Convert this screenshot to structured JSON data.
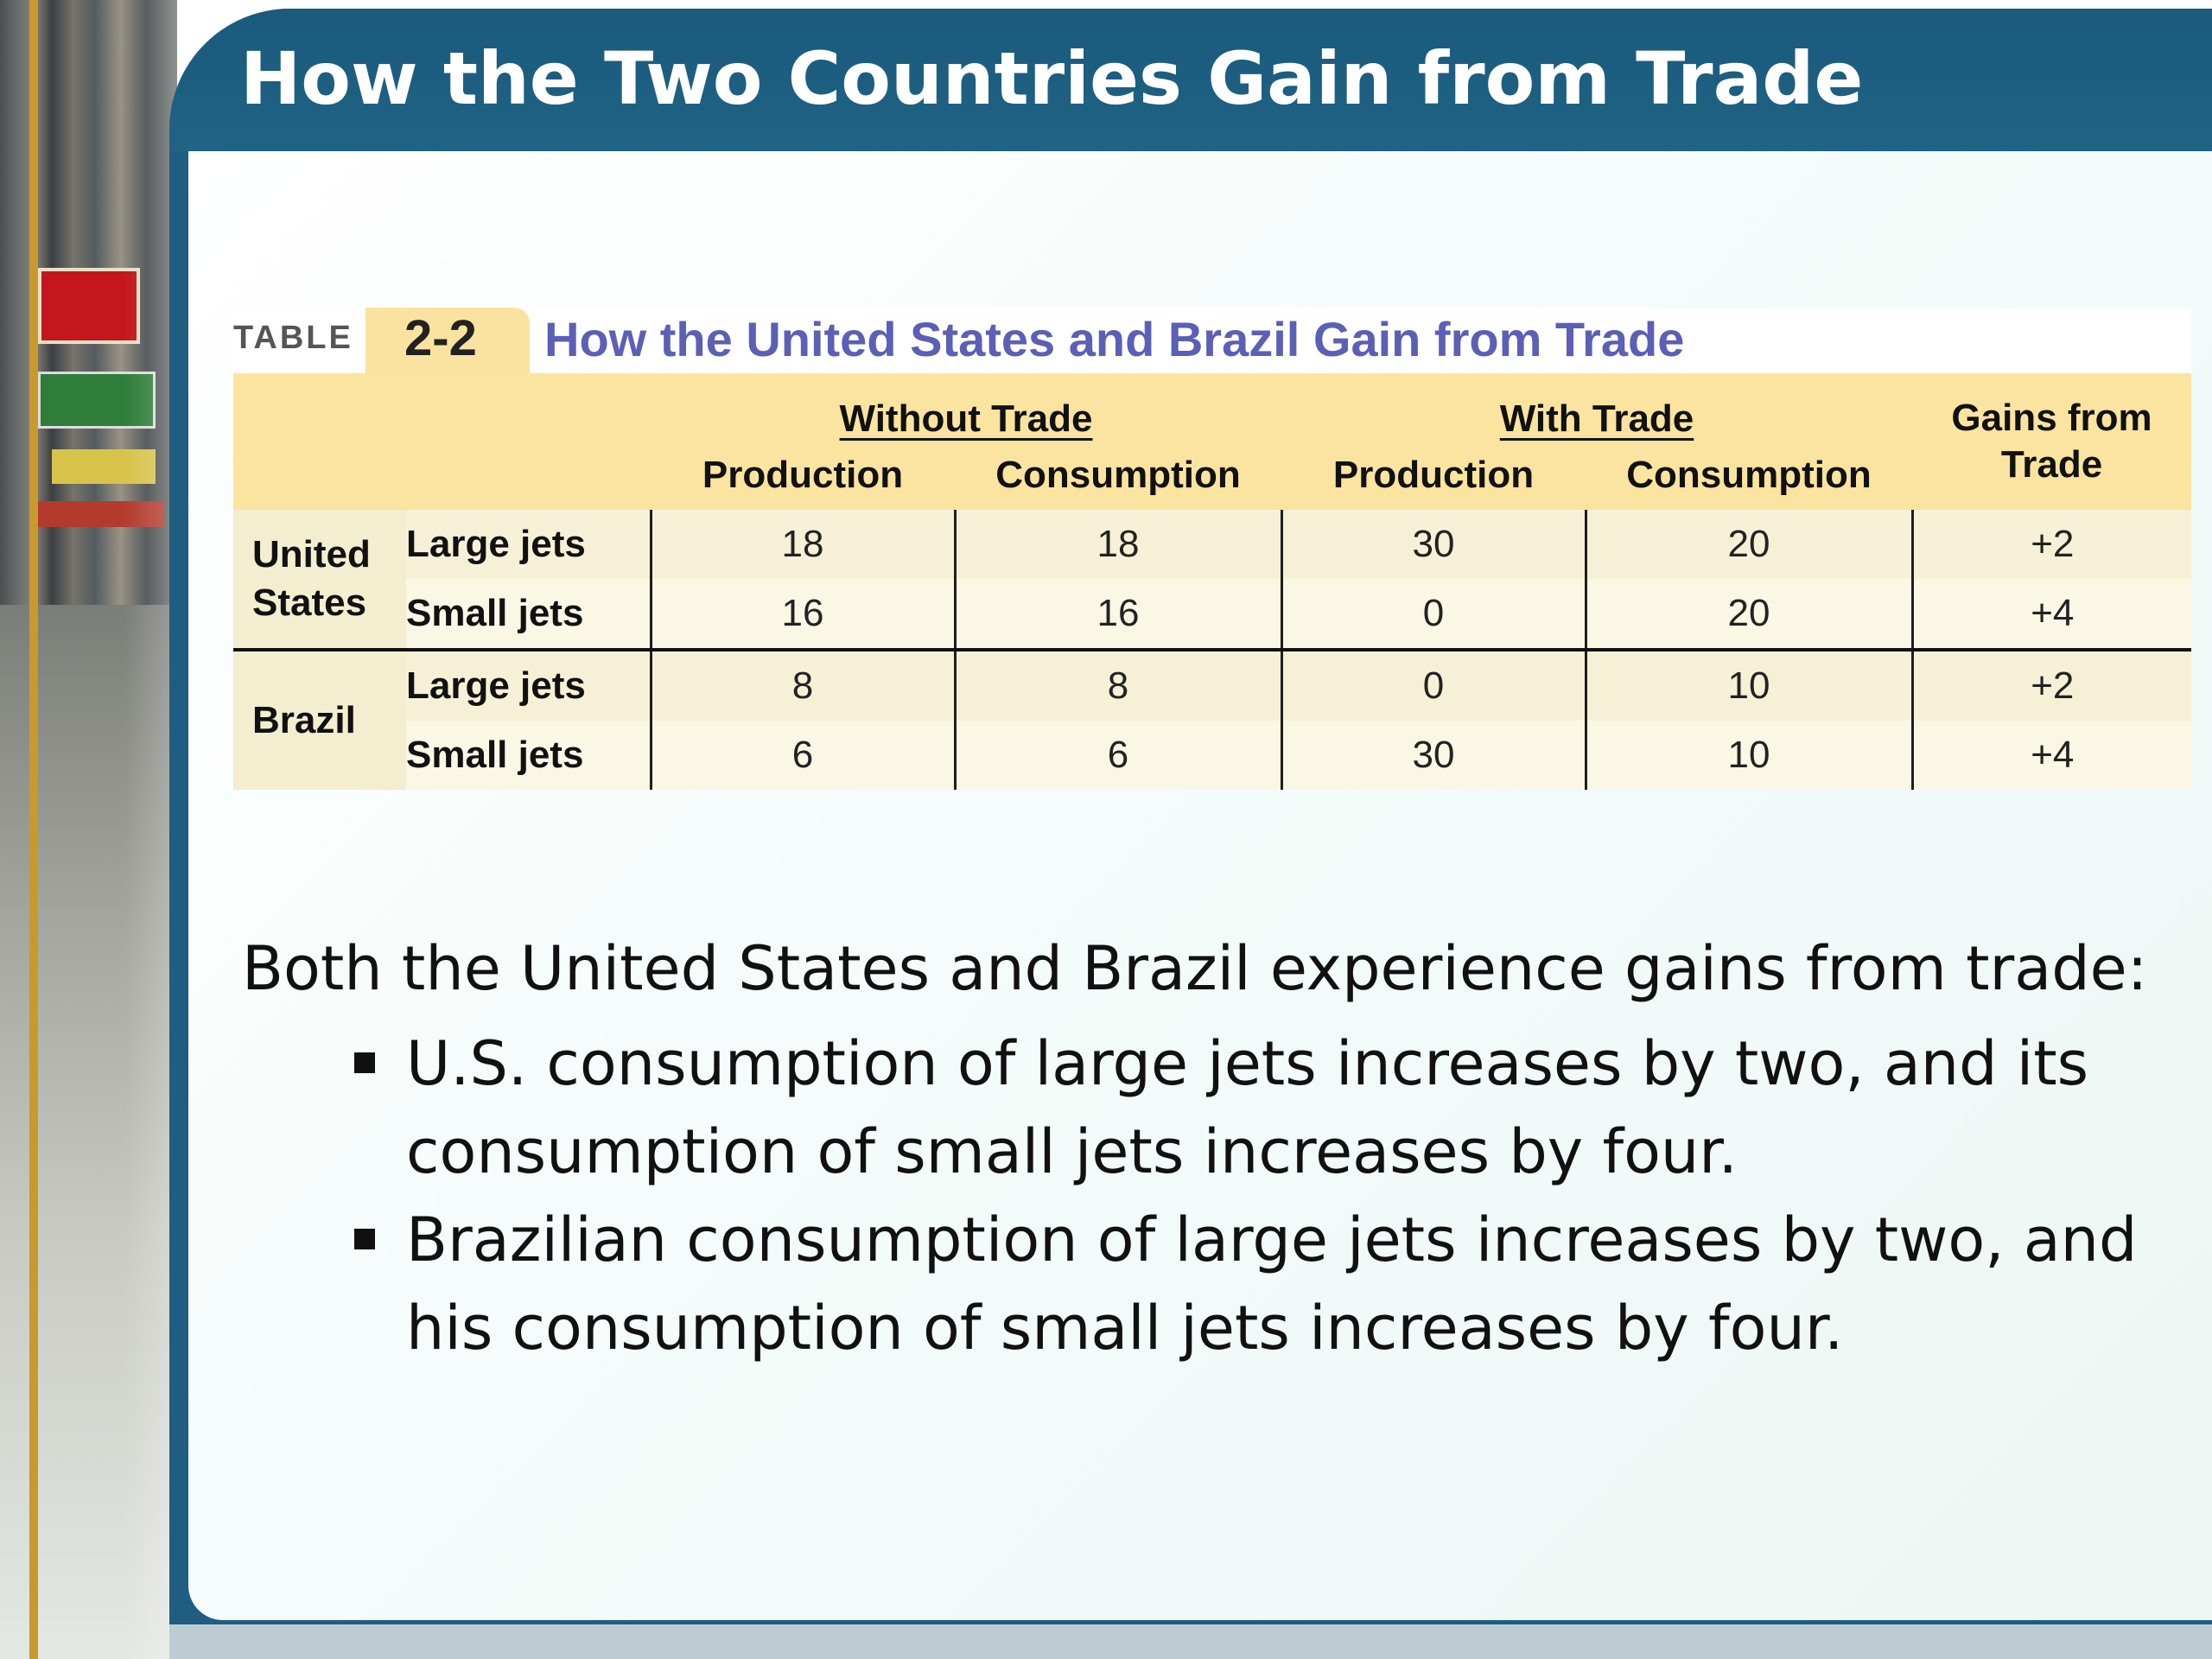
{
  "slide": {
    "title": "How the Two Countries Gain from Trade"
  },
  "table": {
    "label": "TABLE",
    "number": "2-2",
    "caption": "How the United States and Brazil Gain from Trade",
    "groups": {
      "without_trade": "Without Trade",
      "with_trade": "With Trade",
      "gains": "Gains from Trade"
    },
    "columns": {
      "production": "Production",
      "consumption": "Consumption"
    },
    "countries": [
      {
        "name": "United States",
        "rows": [
          {
            "good": "Large jets",
            "wo_prod": "18",
            "wo_cons": "18",
            "w_prod": "30",
            "w_cons": "20",
            "gain": "+2"
          },
          {
            "good": "Small jets",
            "wo_prod": "16",
            "wo_cons": "16",
            "w_prod": "0",
            "w_cons": "20",
            "gain": "+4"
          }
        ]
      },
      {
        "name": "Brazil",
        "rows": [
          {
            "good": "Large jets",
            "wo_prod": "8",
            "wo_cons": "8",
            "w_prod": "0",
            "w_cons": "10",
            "gain": "+2"
          },
          {
            "good": "Small jets",
            "wo_prod": "6",
            "wo_cons": "6",
            "w_prod": "30",
            "w_cons": "10",
            "gain": "+4"
          }
        ]
      }
    ]
  },
  "body": {
    "intro": "Both the United States and Brazil experience gains from trade:",
    "bullets": [
      "U.S. consumption of large jets increases by two, and its consumption of small jets increases by four.",
      "Brazilian consumption of large jets increases by two, and his consumption of small jets increases by four."
    ]
  }
}
